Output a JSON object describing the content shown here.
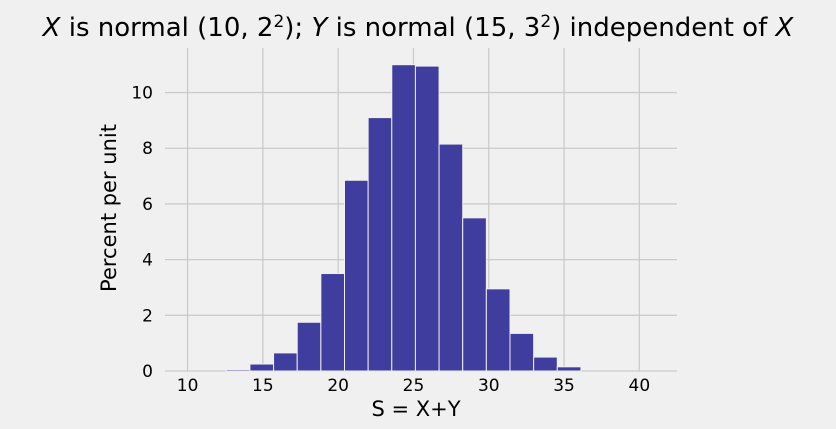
{
  "chart_data": {
    "type": "bar",
    "title": {
      "var1": "X",
      "seg1": " is normal (10, 2",
      "sup1": "2",
      "seg2": "); ",
      "var2": "Y",
      "seg3": " is normal (15, 3",
      "sup2": "2",
      "seg4": ") independent of ",
      "var3": "X"
    },
    "xlabel": "S = X+Y",
    "ylabel": "Percent per unit",
    "xlim": [
      8.5,
      42.5
    ],
    "ylim": [
      0,
      11.6
    ],
    "xticks": [
      10,
      15,
      20,
      25,
      30,
      35,
      40
    ],
    "yticks": [
      0,
      2,
      4,
      6,
      8,
      10
    ],
    "grid": true,
    "bar_color": "#3f3d9e",
    "bins": [
      {
        "start": 12.57,
        "end": 14.14,
        "value": 0.05
      },
      {
        "start": 14.14,
        "end": 15.71,
        "value": 0.25
      },
      {
        "start": 15.71,
        "end": 17.28,
        "value": 0.65
      },
      {
        "start": 17.28,
        "end": 18.85,
        "value": 1.75
      },
      {
        "start": 18.85,
        "end": 20.42,
        "value": 3.5
      },
      {
        "start": 20.42,
        "end": 21.99,
        "value": 6.85
      },
      {
        "start": 21.99,
        "end": 23.56,
        "value": 9.1
      },
      {
        "start": 23.56,
        "end": 25.13,
        "value": 11.0
      },
      {
        "start": 25.13,
        "end": 26.7,
        "value": 10.95
      },
      {
        "start": 26.7,
        "end": 28.27,
        "value": 8.15
      },
      {
        "start": 28.27,
        "end": 29.84,
        "value": 5.5
      },
      {
        "start": 29.84,
        "end": 31.41,
        "value": 2.95
      },
      {
        "start": 31.41,
        "end": 32.98,
        "value": 1.35
      },
      {
        "start": 32.98,
        "end": 34.55,
        "value": 0.5
      },
      {
        "start": 34.55,
        "end": 36.12,
        "value": 0.15
      }
    ]
  }
}
